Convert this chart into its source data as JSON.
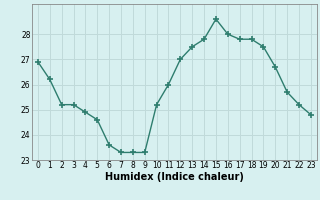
{
  "x": [
    0,
    1,
    2,
    3,
    4,
    5,
    6,
    7,
    8,
    9,
    10,
    11,
    12,
    13,
    14,
    15,
    16,
    17,
    18,
    19,
    20,
    21,
    22,
    23
  ],
  "y": [
    26.9,
    26.2,
    25.2,
    25.2,
    24.9,
    24.6,
    23.6,
    23.3,
    23.3,
    23.3,
    25.2,
    26.0,
    27.0,
    27.5,
    27.8,
    28.6,
    28.0,
    27.8,
    27.8,
    27.5,
    26.7,
    25.7,
    25.2,
    24.8
  ],
  "xlabel": "Humidex (Indice chaleur)",
  "ylabel": "",
  "xlim": [
    -0.5,
    23.5
  ],
  "ylim": [
    23.0,
    29.2
  ],
  "yticks": [
    23,
    24,
    25,
    26,
    27,
    28
  ],
  "xticks": [
    0,
    1,
    2,
    3,
    4,
    5,
    6,
    7,
    8,
    9,
    10,
    11,
    12,
    13,
    14,
    15,
    16,
    17,
    18,
    19,
    20,
    21,
    22,
    23
  ],
  "line_color": "#2e7d6e",
  "marker": "+",
  "marker_size": 4,
  "marker_lw": 1.2,
  "bg_color": "#d7f0f0",
  "grid_color": "#c0dada",
  "label_color": "#000000",
  "tick_fontsize": 5.5,
  "xlabel_fontsize": 7.0,
  "linewidth": 1.0
}
